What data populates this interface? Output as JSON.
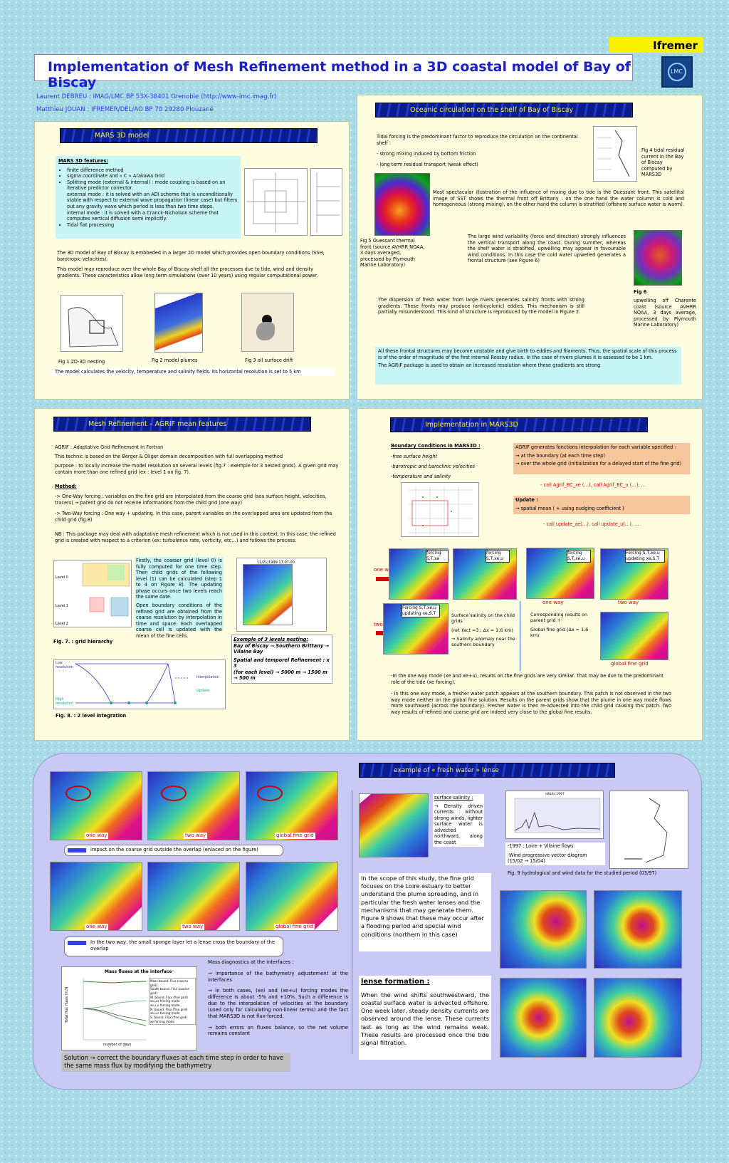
{
  "title": "Implementation of Mesh Refinement method in a 3D coastal model of Bay of Biscay",
  "logos": {
    "ifremer": "Ifremer",
    "lmc": "LMC"
  },
  "authors": [
    "Laurent DEBREU : IMAG/LMC BP 53X-38401 Grenoble (http://www-lmc.imag.fr)",
    "Matthieu JOUAN : IFREMER/DEL/AO BP 70 29280 Plouzané"
  ],
  "mars": {
    "heading": "MARS 3D model",
    "features_title": "MARS 3D features:",
    "features": [
      "finite difference method",
      "sigma coordinate and « C » Arakawa Grid",
      "Splitting mode (external & internal) : mode coupling is based on an iterative predictor corrector.",
      "external mode : it is solved with an ADI scheme that is unconditionally stable with respect to external wave propagation (linear case) but filters out any gravity wave which period is less than two time steps.",
      "internal mode : it is solved with a Cranck-Nicholson scheme that computes vertical diffusion semi implicitly.",
      "Tidal flat processing"
    ],
    "p1": "The 3D model of Bay of Biscay is embbeded in a larger 2D model which provides open boundary conditions (SSH, barotropic velocities).",
    "p2": "This model may reproduce over the whole Bay of Biscay shelf all the processes due to tide, wind and density gradients. These caracteristics allow long term simulations (over 10 years) using regular computational power.",
    "fig1": "Fig 1 2D-3D nesting",
    "fig2": "Fig 2 model plumes",
    "fig3": "Fig 3 oil surface drift",
    "foot": "The model calculates the velocity, temperature and salinity fields. Its horizontal resolution is set to 5 km"
  },
  "ocean": {
    "heading": "Oceanic circulation on the shelf of Bay of Biscay",
    "p1": "Tidal forcing is the predominant factor to reproduce  the circulation on the continental shelf :",
    "b1": "- strong mixing induced by bottom friction",
    "b2": "- long term residual transport (weak effect)",
    "fig4": "Fig 4 tidal residual current in the Bay of Biscay computed by MARS3D",
    "p2": "Most spectacular illustration of the influence of mixing due to tide is the Ouessant front. This satellital image of SST shows the thermal front off Brittany : on the one hand the water column is cold and homogeneous (strong mixing), on the other hand the column is stratified (offshore surface water is warm).",
    "fig5": "Fig 5 Ouessant thermal front (source AVHRR NOAA, 3 days averaged, processed by Plymouth Marine Laboratory)",
    "p3": "The large wind variability (force and direction) strongly influences the vertical transport along the coast. During summer, whereas the shelf water is stratified, upwelling may appear in favourable wind conditions. In this case the cold water upwelled generates a frontal structure (see Figure 6)",
    "fig6_title": "Fig 6",
    "fig6": "upwelling off Charente coast (source AVHRR NOAA, 3 days average, processed by Plymouth Marine Laboratory)",
    "p4": "The dispersion of fresh water from large rivers generates salinity fronts with strong gradients. These fronts may produce (anticyclonic) eddies. This mechanism is still partially misunderstood. This kind of structure is reproduced by the model in Figure 2.",
    "p5": "All these frontal structures may become unstable and give birth to eddies and filaments. Thus, the spatial scale of this process is of the order of magnitude of the first internal Rossby radius. In the case of rivers plumes it is assessed  to be 1 km.",
    "p6": "The AGRIF package is used to obtain an increased resolution where these gradients are strong"
  },
  "mesh": {
    "heading": "Mesh Refinement – AGRIF mean features",
    "agrif": "AGRIF : Adaptative Grid Refinement In Fortran",
    "p1": "This technic is based on the Berger & Oliger domain decomposition with full overlapping method",
    "purpose": "purpose :  to locally increase the model resolution on several levels (fig.7 : exemple for 3 nested grids). A given grid may contain more than one refined grid (ex : level 1 on fig. 7).",
    "method": "Method:",
    "oneway": "-> One-Way forcing : variables on the fine grid are interpolated from the coarse grid (sea surface height, velocities, tracers) → parent grid do not receive informations from the child grid (one way)",
    "twoway": "-> Two-Way forcing : One way + updating. In this case, parent variables on the overlapped area are updated from the child grid (fig.8)",
    "nb": "NB : This package may deal with adaptative mesh refinement which is not used in this context. In this case, the refined grid is created with respect to a criterion (ex: turbulence rate, vorticity, etc…) and follows the process.",
    "side1": "Firstly, the coarser grid (level 0) is fully computed for one time step. Then child grids of the following level (1) can be calculated (step 1 to 4 on Figure 8). The updating phase occurs once two levels reach the same date.",
    "side2": "Open boundary conditions of the refined grid are obtained from the coarse resolution by interpolation in time and space. Each overlapped coarse cell is updated with the mean of the fine cells.",
    "fig7": "Fig. 7. : grid hierarchy",
    "fig8": "Fig. 8. : 2 level integration",
    "ex_title": "Exemple of 3 levels nesting:",
    "ex1": "Bay of Biscay → Southern Brittany → Vilaine Bay",
    "ex2": "Spatial and temporel Refinement :  x 3",
    "ex3": "(for each level)      → 5000 m → 1500 m → 500 m",
    "map_date": "11/21/1999 17:07:00",
    "levels": [
      "Level 0",
      "Level 1",
      "Level 2"
    ],
    "low": "Low resolution",
    "high": "High resolution",
    "interp": "Interpolation",
    "update": "Update"
  },
  "impl": {
    "heading": "Implementation in MARS3D",
    "bc": "Boundary Conditions in MARS3D :",
    "bcs": [
      "-free surface height",
      "-barotropic and baroclinic velocities",
      "-temperature and salinity"
    ],
    "agrif1": "AGRIF generates fonctions interpolation for each variable specified :",
    "agrif2": "→ at the boundary (at each time step)",
    "agrif3": "→ over the whole grid (initialization for a delayed start of the fine grid)",
    "call1": "- call Agrif_BC_xe (…), call Agrif_BC_u (…), …",
    "upd1": "Update :",
    "upd2": "→ spatial mean (  + using nudging coefficient )",
    "call2": "- call update_xe(…), call update_u(…), …",
    "oneway": "one way",
    "twoway": "two way",
    "f1": "forcing S,T,xe",
    "f2": "forcing S,T,xe,u",
    "f3": "forcing S,T,xe,u",
    "f4": "Forcing S,T,xe,u updating xe,S,T",
    "f5": "Forcing S,T,xe,u updating xe,S,T",
    "sal": "Surface salinity on the child grids",
    "ref": "(ref. fact =3 ; Δx = 1,6 km)",
    "anom": "→ Salinity anomaly near the southern boundary",
    "corr": "Corresponding results on parent grid  +",
    "glob": "Global fine grid (Δx = 1,6 km)",
    "lab_one": "one way",
    "lab_two": "two way",
    "lab_glob": "global fine grid",
    "p1": "-In the one way mode (xe and xe+u), results on the fine grids are very similar. That may be due to the predominant role of the tide (xe forcing).",
    "p2": "- In this one way mode, a fresher water patch appears at the southern boundary. This patch is not observed in the two way mode neither on the global fine solution. Results on the parent grids show that the plume in one way mode flows more southward (across the boundary). Fresher water is then re-advected into the child grid causing this patch.  Two way results of refined and coarse grid are indeed very close to the global fine results."
  },
  "bottom": {
    "row1": [
      "one way",
      "two way",
      "global fine grid"
    ],
    "impact": "impact on the coarse grid outside the overlap (enlaced on the figure)",
    "row2": [
      "one way",
      "two way",
      "global fine grid"
    ],
    "lense_note": "In the two way, the small sponge layer let a lense cross the boundary of the overlap",
    "chart_title": "Mass fluxes at the interface",
    "chart_xlabel": "number of days",
    "chart_ylabel": "Total flux mass (m3)",
    "chart_legend": [
      "Mass bound. Flux (coarse grid)",
      "South bound. Flux (coarse grid)",
      "W. bound. Flux (fine grid)",
      "xe,u,s forcing mode",
      "xe,s,v forcing mode",
      "N. bound. Flux (fine grid)",
      "xe,u,s forcing mode",
      "S. bound. Flux (fine grid)",
      "xe forcing mode"
    ],
    "mass_title": "Mass diagnostics at the interfaces :",
    "mass1": "→ importance of the bathymetry adjustement at the interfaces",
    "mass2": "→ in both cases, (xe) and (xe+u) forcing modes the difference is about -5% and +10%. Such a difference is due to the interpolation of velocities at the boundary (used only for calculating non-linear terms) and the fact that MARS3D is not flux-forced.",
    "mass3": "→ both errors on fluxes balance, so the net volume remains constant",
    "solution": "Solution → correct the boundary fluxes at each time step in order to have the same mass flux by modifying the bathymetry",
    "fw_heading": "example of « fresh water » lense",
    "surf_title": "surface salinity :",
    "surf": "→ Density driven currents : without strong winds, lighter surface water is advected northward, along the coast",
    "loire1": "-1997 : Loire + Vilaine flows",
    "loire2": "-Wind progressive vector diagram (15/02 → 15/04)",
    "fig9": "Fig. 9 hydrological and wind data for the studied period (03/97)",
    "scope": "In the scope of this study, the fine grid focuses on the Loire estuary to better understand the plume spreading, and in particular the fresh water lenses and the mechanisms that may generate them. Figure 9 shows that these may occur after a flooding period and special wind conditions (northern in this case)",
    "lense_title": "lense formation :",
    "lense": "When the wind shifts southwestward, the coastal surface water is advected offshore. One week later, steady density currents are observed around the lense. These currents last as long as the wind remains weak. These results are processed once the tide signal filtration.",
    "hydro_title": "débits 1997"
  }
}
